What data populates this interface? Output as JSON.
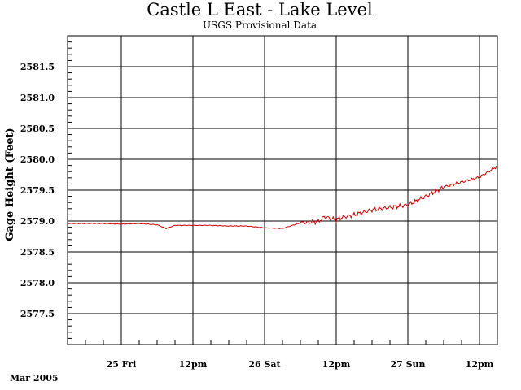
{
  "chart_data": {
    "type": "line",
    "title": "Castle L East - Lake Level",
    "subtitle": "USGS Provisional Data",
    "ylabel": "Gage Height (Feet)",
    "xlabel": "",
    "footnote": "Mar 2005",
    "ylim": [
      2577.0,
      2582.0
    ],
    "xlim_hours": [
      -9,
      63
    ],
    "grid": true,
    "line_color": "#cc0000",
    "y_ticks": [
      {
        "value": 2577.5,
        "label": "2577.5"
      },
      {
        "value": 2578.0,
        "label": "2578.0"
      },
      {
        "value": 2578.5,
        "label": "2578.5"
      },
      {
        "value": 2579.0,
        "label": "2579.0"
      },
      {
        "value": 2579.5,
        "label": "2579.5"
      },
      {
        "value": 2580.0,
        "label": "2580.0"
      },
      {
        "value": 2580.5,
        "label": "2580.5"
      },
      {
        "value": 2581.0,
        "label": "2581.0"
      },
      {
        "value": 2581.5,
        "label": "2581.5"
      }
    ],
    "x_ticks": [
      {
        "value": 0,
        "label": "25 Fri"
      },
      {
        "value": 12,
        "label": "12pm"
      },
      {
        "value": 24,
        "label": "26 Sat"
      },
      {
        "value": 36,
        "label": "12pm"
      },
      {
        "value": 48,
        "label": "27 Sun"
      },
      {
        "value": 60,
        "label": "12pm"
      }
    ],
    "series": [
      {
        "x": [
          -9,
          -6,
          -3,
          0,
          3,
          6,
          7.5,
          9,
          12,
          15,
          18,
          21,
          24,
          27,
          30,
          33,
          34,
          36,
          37,
          39,
          42,
          45,
          48,
          51,
          54,
          57,
          60,
          63
        ],
        "y": [
          2578.96,
          2578.96,
          2578.96,
          2578.95,
          2578.96,
          2578.94,
          2578.88,
          2578.93,
          2578.93,
          2578.93,
          2578.92,
          2578.92,
          2578.89,
          2578.88,
          2578.97,
          2578.99,
          2579.07,
          2579.02,
          2579.06,
          2579.1,
          2579.18,
          2579.22,
          2579.26,
          2579.4,
          2579.55,
          2579.63,
          2579.71,
          2579.89
        ]
      }
    ]
  }
}
